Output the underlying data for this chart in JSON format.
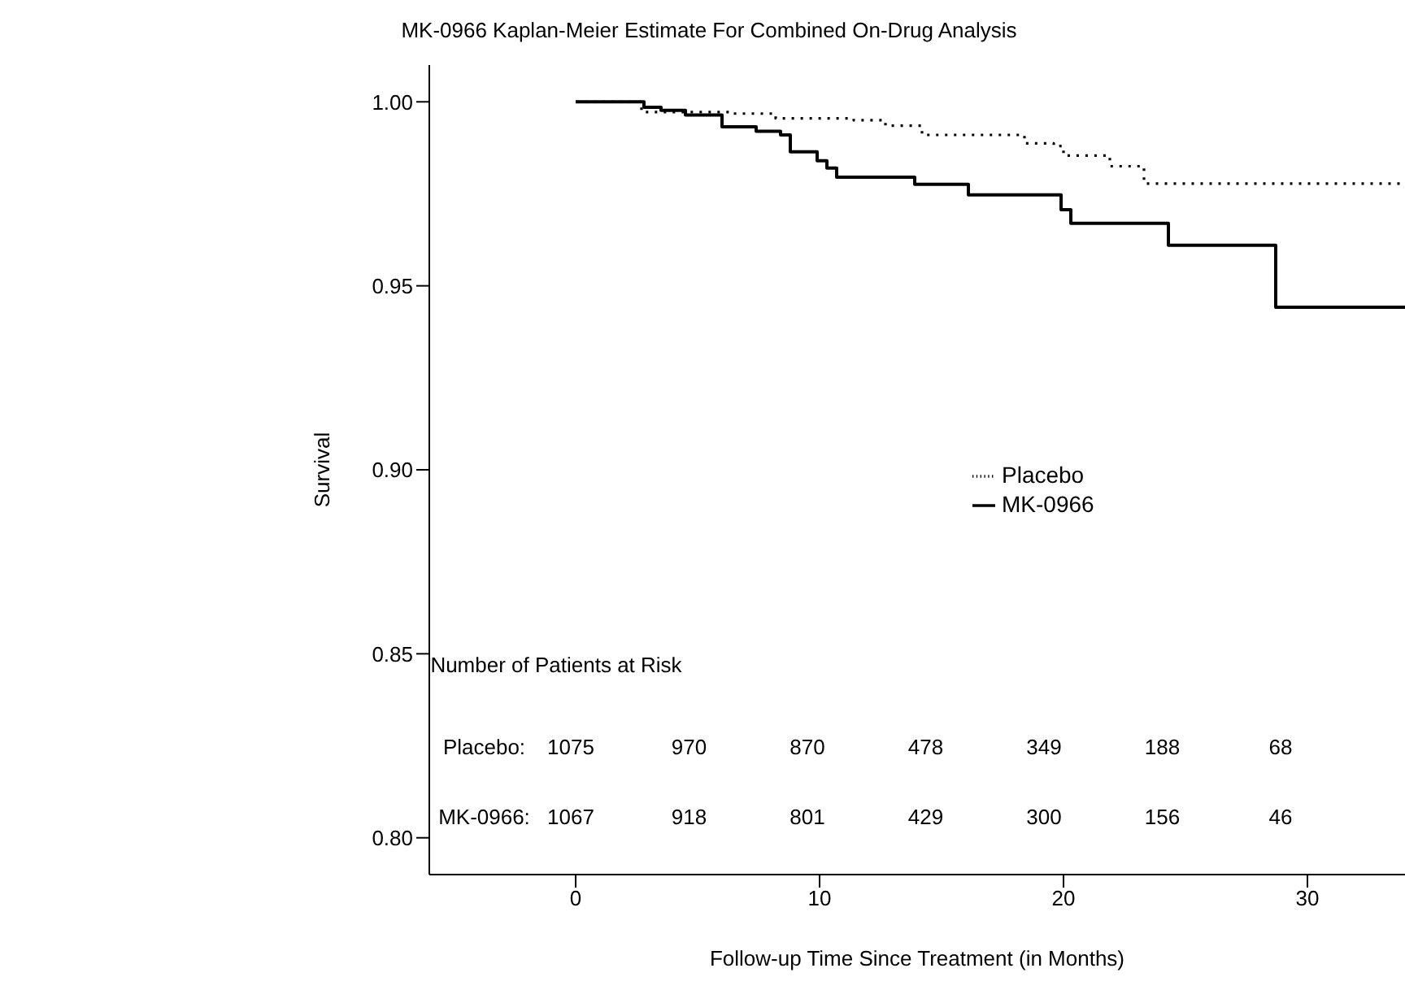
{
  "chart_data": {
    "type": "step",
    "title": "MK-0966 Kaplan-Meier Estimate For Combined On-Drug Analysis",
    "xlabel": "Follow-up Time Since Treatment (in Months)",
    "ylabel": "Survival",
    "series": [
      {
        "name": "Placebo",
        "color": "#000000",
        "line_style": "dotted",
        "x": [
          0,
          2.7,
          6.3,
          8.2,
          11.4,
          12.7,
          14.2,
          18.4,
          19.6,
          20.0,
          21.9,
          23.3,
          34
        ],
        "values": [
          1.0,
          0.9972,
          0.9968,
          0.9955,
          0.995,
          0.9935,
          0.991,
          0.9887,
          0.988,
          0.9854,
          0.9825,
          0.9778,
          0.9778
        ]
      },
      {
        "name": "MK-0966",
        "color": "#000000",
        "line_style": "solid",
        "x": [
          0,
          2.8,
          3.5,
          4.5,
          6.0,
          7.4,
          8.4,
          8.8,
          9.9,
          10.3,
          10.7,
          13.9,
          16.1,
          19.9,
          20.3,
          24.3,
          28.7,
          34
        ],
        "values": [
          1.0,
          0.9985,
          0.9977,
          0.9964,
          0.9932,
          0.992,
          0.991,
          0.9864,
          0.984,
          0.982,
          0.9795,
          0.9776,
          0.9747,
          0.9707,
          0.967,
          0.961,
          0.9442,
          0.9442
        ]
      }
    ],
    "xlim": [
      -6,
      34
    ],
    "xticks": [
      0,
      10,
      20,
      30
    ],
    "ylim": [
      0.79,
      1.01
    ],
    "yticks": [
      {
        "value": 0.8,
        "label": "0.80"
      },
      {
        "value": 0.85,
        "label": "0.85"
      },
      {
        "value": 0.9,
        "label": "0.90"
      },
      {
        "value": 0.95,
        "label": "0.95"
      },
      {
        "value": 1.0,
        "label": "1.00"
      }
    ],
    "grid": false,
    "legend": "right",
    "marker": "none",
    "annotations": [
      "Number of Patients at Risk",
      "Placebo:",
      "1075",
      "970",
      "870",
      "478",
      "349",
      "188",
      "68",
      "MK-0966:",
      "1067",
      "918",
      "801",
      "429",
      "300",
      "156",
      "46"
    ]
  }
}
